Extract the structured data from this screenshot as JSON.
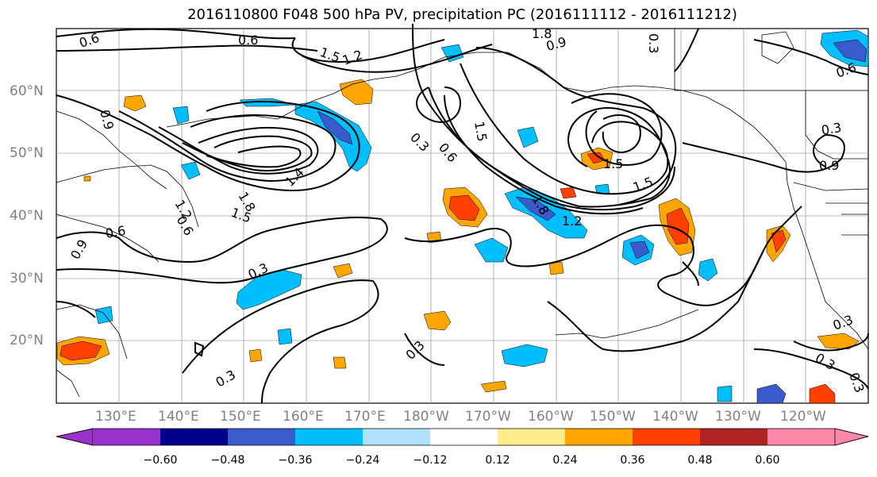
{
  "title": "2016110800 F048 500 hPa PV, precipitation PC (2016111112 - 2016111212)",
  "lat_labels": [
    {
      "text": "60°N"
    },
    {
      "text": "50°N"
    },
    {
      "text": "40°N"
    },
    {
      "text": "30°N"
    },
    {
      "text": "20°N"
    }
  ],
  "lon_labels": [
    "130°E",
    "140°E",
    "150°E",
    "160°E",
    "170°E",
    "180°W",
    "170°W",
    "160°W",
    "150°W",
    "140°W",
    "130°W",
    "120°W"
  ],
  "contour_labels": [
    "0.6",
    "0.6",
    "1.5",
    "1.2",
    "1.8",
    "0.9",
    "0.3",
    "0.6",
    "0.9",
    "0.3",
    "0.6",
    "1.5",
    "1.5",
    "1.8",
    "1.2",
    "1.2",
    "1.5",
    "0.9",
    "1.5",
    "0.3",
    "0.6",
    "0.3",
    "0.3",
    "0.3",
    "0.3",
    "0.3",
    "0.3",
    "0.9",
    "1.8",
    "1.4",
    "0.6"
  ],
  "colorbar": {
    "ticks": [
      "−0.60",
      "−0.48",
      "−0.36",
      "−0.24",
      "−0.12",
      "0.12",
      "0.24",
      "0.36",
      "0.48",
      "0.60"
    ],
    "colors": [
      "#9932cc",
      "#00008b",
      "#3a5bcc",
      "#00bfff",
      "#b0e2ff",
      "#ffffff",
      "#ffec8b",
      "#ffa500",
      "#ff4000",
      "#b22222",
      "#ff88aa"
    ]
  }
}
